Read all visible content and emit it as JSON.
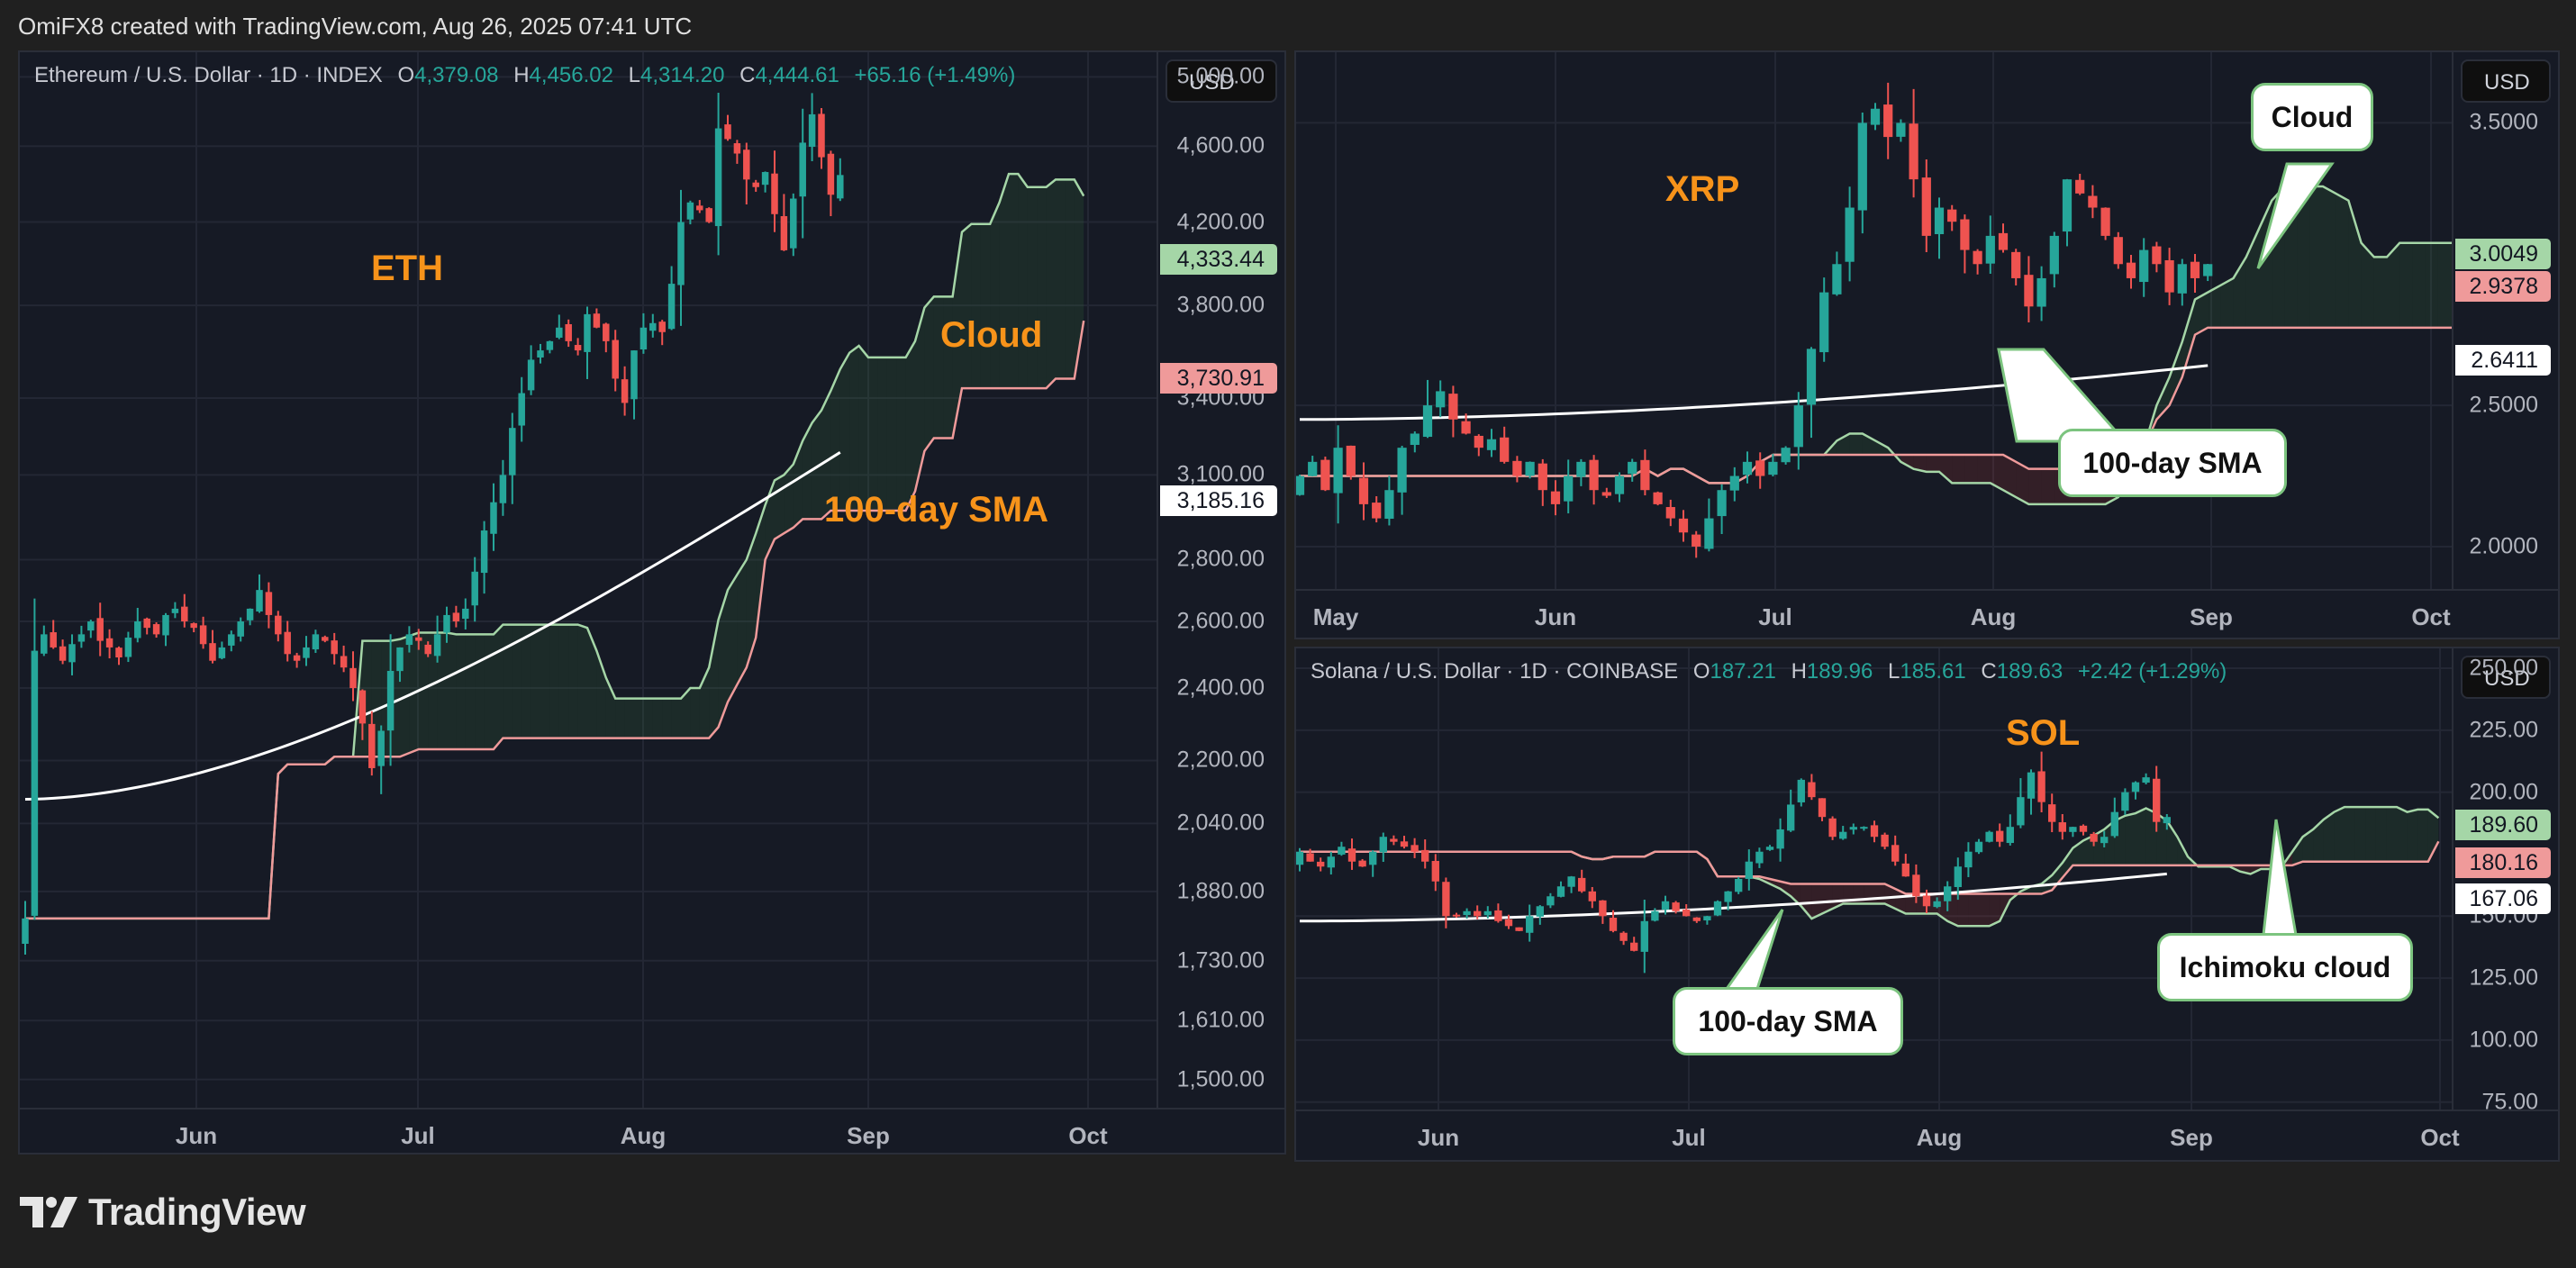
{
  "header": {
    "credit": "OmiFX8 created with TradingView.com, Aug 26, 2025 07:41 UTC"
  },
  "branding": {
    "logo_text": "TradingView"
  },
  "colors": {
    "up": "#26a69a",
    "down": "#ef5350",
    "cloud_a": "#a5d6a7",
    "cloud_b": "#ef9a9a",
    "sma": "#ffffff",
    "label": "#f7931a",
    "grid": "#232734",
    "bg": "#161a25"
  },
  "panels": {
    "eth": {
      "symbol": "Ethereum / U.S. Dollar · 1D · INDEX",
      "ohlc": {
        "o_label": "O",
        "o": "4,379.08",
        "h_label": "H",
        "h": "4,456.02",
        "l_label": "L",
        "l": "4,314.20",
        "c_label": "C",
        "c": "4,444.61",
        "change": "+65.16 (+1.49%)"
      },
      "currency": "USD",
      "price_ticks": [
        "5,000.00",
        "4,600.00",
        "4,200.00",
        "3,800.00",
        "3,400.00",
        "3,100.00",
        "2,800.00",
        "2,600.00",
        "2,400.00",
        "2,200.00",
        "2,040.00",
        "1,880.00",
        "1,730.00",
        "1,610.00",
        "1,500.00"
      ],
      "time_ticks": [
        "Jun",
        "Jul",
        "Aug",
        "Sep",
        "Oct"
      ],
      "badges": [
        {
          "value": "4,333.44",
          "kind": "green"
        },
        {
          "value": "3,730.91",
          "kind": "red"
        },
        {
          "value": "3,185.16",
          "kind": "white"
        }
      ],
      "labels": {
        "asset": "ETH",
        "cloud": "Cloud",
        "sma": "100-day SMA"
      }
    },
    "xrp": {
      "currency": "USD",
      "price_ticks": [
        "3.5000",
        "2.5000",
        "2.0000"
      ],
      "time_ticks": [
        "May",
        "Jun",
        "Jul",
        "Aug",
        "Sep",
        "Oct"
      ],
      "badges": [
        {
          "value": "3.0049",
          "kind": "green"
        },
        {
          "value": "2.9378",
          "kind": "red"
        },
        {
          "value": "2.6411",
          "kind": "white"
        }
      ],
      "labels": {
        "asset": "XRP"
      },
      "callouts": {
        "cloud": "Cloud",
        "sma": "100-day SMA"
      }
    },
    "sol": {
      "symbol": "Solana / U.S. Dollar · 1D · COINBASE",
      "ohlc": {
        "o_label": "O",
        "o": "187.21",
        "h_label": "H",
        "h": "189.96",
        "l_label": "L",
        "l": "185.61",
        "c_label": "C",
        "c": "189.63",
        "change": "+2.42 (+1.29%)"
      },
      "currency": "USD",
      "price_ticks": [
        "250.00",
        "225.00",
        "200.00",
        "150.00",
        "125.00",
        "100.00",
        "75.00"
      ],
      "time_ticks": [
        "Jun",
        "Jul",
        "Aug",
        "Sep",
        "Oct"
      ],
      "badges": [
        {
          "value": "189.60",
          "kind": "green"
        },
        {
          "value": "180.16",
          "kind": "red"
        },
        {
          "value": "167.06",
          "kind": "white"
        }
      ],
      "labels": {
        "asset": "SOL"
      },
      "callouts": {
        "sma": "100-day SMA",
        "cloud": "Ichimoku cloud"
      }
    }
  },
  "chart_data": [
    {
      "type": "candlestick",
      "title": "Ethereum / U.S. Dollar · 1D · INDEX",
      "ylim": [
        1450,
        5150
      ],
      "y_ticks": [
        5000,
        4600,
        4200,
        3800,
        3400,
        3100,
        2800,
        2600,
        2400,
        2200,
        2040,
        1880,
        1730,
        1610,
        1500
      ],
      "x_ticks": [
        "Jun",
        "Jul",
        "Aug",
        "Sep",
        "Oct"
      ],
      "last": {
        "open": 4379.08,
        "high": 4456.02,
        "low": 4314.2,
        "close": 4444.61,
        "change": 65.16,
        "change_pct": 1.49
      },
      "close_path": [
        1820,
        2510,
        2560,
        2520,
        2480,
        2530,
        2560,
        2600,
        2540,
        2520,
        2490,
        2550,
        2600,
        2580,
        2560,
        2620,
        2640,
        2600,
        2580,
        2530,
        2480,
        2520,
        2560,
        2600,
        2640,
        2700,
        2620,
        2560,
        2500,
        2480,
        2520,
        2560,
        2540,
        2500,
        2460,
        2400,
        2300,
        2180,
        2280,
        2450,
        2520,
        2560,
        2540,
        2500,
        2560,
        2620,
        2600,
        2640,
        2760,
        2900,
        3000,
        3100,
        3280,
        3420,
        3560,
        3600,
        3640,
        3700,
        3640,
        3600,
        3760,
        3700,
        3640,
        3480,
        3380,
        3600,
        3700,
        3720,
        3680,
        3900,
        4200,
        4300,
        4260,
        4200,
        4700,
        4640,
        4560,
        4420,
        4380,
        4460,
        4240,
        4060,
        4320,
        4620,
        4780,
        4540,
        4340,
        4444
      ],
      "sma_100": {
        "start": 2100,
        "end": 3185.16,
        "min": 2050
      },
      "cloud_now": {
        "span_a": 4333.44,
        "span_b": 3730.91
      },
      "annotations": [
        "ETH",
        "Cloud",
        "100-day SMA"
      ]
    },
    {
      "type": "candlestick",
      "title": "XRP",
      "ylim": [
        1.85,
        3.75
      ],
      "y_ticks": [
        3.5,
        2.5,
        2.0
      ],
      "x_ticks": [
        "May",
        "Jun",
        "Jul",
        "Aug",
        "Sep",
        "Oct"
      ],
      "close_path": [
        2.25,
        2.3,
        2.2,
        2.35,
        2.25,
        2.15,
        2.1,
        2.2,
        2.35,
        2.4,
        2.5,
        2.55,
        2.45,
        2.4,
        2.35,
        2.38,
        2.3,
        2.25,
        2.3,
        2.2,
        2.15,
        2.25,
        2.3,
        2.2,
        2.18,
        2.25,
        2.3,
        2.2,
        2.15,
        2.1,
        2.05,
        2.0,
        2.1,
        2.2,
        2.25,
        2.3,
        2.25,
        2.3,
        2.35,
        2.5,
        2.7,
        2.9,
        3.0,
        3.2,
        3.5,
        3.55,
        3.45,
        3.5,
        3.3,
        3.1,
        3.2,
        3.15,
        3.05,
        3.0,
        3.1,
        3.05,
        2.95,
        2.85,
        2.95,
        3.1,
        3.3,
        3.25,
        3.2,
        3.1,
        3.0,
        2.95,
        3.05,
        3.0,
        2.9,
        3.0,
        2.95,
        3.0
      ],
      "sma_100": {
        "start": 2.45,
        "end": 2.6411
      },
      "cloud_now": {
        "span_a": 3.0049,
        "span_b": 2.9378
      },
      "annotations": [
        "XRP",
        "Cloud",
        "100-day SMA"
      ]
    },
    {
      "type": "candlestick",
      "title": "Solana / U.S. Dollar · 1D · COINBASE",
      "ylim": [
        72,
        258
      ],
      "y_ticks": [
        250,
        225,
        200,
        150,
        125,
        100,
        75
      ],
      "x_ticks": [
        "Jun",
        "Jul",
        "Aug",
        "Sep",
        "Oct"
      ],
      "last": {
        "open": 187.21,
        "high": 189.96,
        "low": 185.61,
        "close": 189.63,
        "change": 2.42,
        "change_pct": 1.29
      },
      "close_path": [
        176,
        172,
        170,
        174,
        178,
        172,
        170,
        176,
        182,
        180,
        178,
        176,
        172,
        164,
        150,
        150,
        152,
        150,
        152,
        148,
        146,
        144,
        150,
        154,
        158,
        162,
        166,
        160,
        156,
        150,
        144,
        140,
        136,
        148,
        152,
        156,
        152,
        150,
        148,
        150,
        156,
        160,
        165,
        172,
        176,
        178,
        185,
        195,
        205,
        198,
        190,
        182,
        184,
        186,
        186,
        182,
        178,
        172,
        166,
        158,
        154,
        156,
        162,
        170,
        176,
        180,
        184,
        180,
        186,
        198,
        208,
        196,
        188,
        184,
        186,
        184,
        180,
        182,
        192,
        200,
        204,
        206,
        188,
        190
      ],
      "sma_100": {
        "start": 148,
        "end": 167.06
      },
      "cloud_now": {
        "span_a": 189.6,
        "span_b": 180.16
      },
      "annotations": [
        "SOL",
        "100-day SMA",
        "Ichimoku cloud"
      ]
    }
  ]
}
